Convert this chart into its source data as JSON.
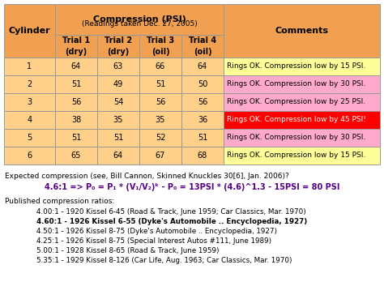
{
  "table_header_top": "Compression (PSI)",
  "table_header_sub": "(Readings taken Dec. 27, 2005)",
  "col_headers": [
    "Cylinder",
    "Trial 1\n(dry)",
    "Trial 2\n(dry)",
    "Trial 3\n(oil)",
    "Trial 4\n(oil)",
    "Comments"
  ],
  "rows": [
    [
      1,
      64,
      63,
      66,
      64,
      "Rings OK. Compression low by 15 PSI."
    ],
    [
      2,
      51,
      49,
      51,
      50,
      "Rings OK. Compression low by 30 PSI."
    ],
    [
      3,
      56,
      54,
      56,
      56,
      "Rings OK. Compression low by 25 PSI."
    ],
    [
      4,
      38,
      35,
      35,
      36,
      "Rings OK. Compression low by 45 PSI!"
    ],
    [
      5,
      51,
      51,
      52,
      51,
      "Rings OK. Compression low by 30 PSI."
    ],
    [
      6,
      65,
      64,
      67,
      68,
      "Rings OK. Compression low by 15 PSI."
    ]
  ],
  "comment_colors": [
    "#ffff99",
    "#ffaacc",
    "#ffaacc",
    "#ff0000",
    "#ffaacc",
    "#ffff99"
  ],
  "header_bg": "#f0a050",
  "data_bg": "#ffd08a",
  "border_color": "#999999",
  "formula_line1": "Expected compression (see, Bill Cannon, Skinned Knuckles 30[6], Jan. 2006)?",
  "formula_line2": "4.6:1 => P₀ = P₁ * (V₁/V₂)ᵏ - P₀ = 13PSI * (4.6)^1.3 - 15PSI = 80 PSI",
  "formula_color": "#550088",
  "published_title": "Published compression ratios:",
  "published_lines": [
    {
      "text": "4.00:1 - 1920 Kissel 6-45 (Road & Track, June 1959; Car Classics, Mar. 1970)",
      "bold": false
    },
    {
      "text": "4.60:1 - 1926 Kissel 6-55 (Dyke's Automobile .. Encyclopedia, 1927)",
      "bold": true
    },
    {
      "text": "4.50:1 - 1926 Kissel 8-75 (Dyke's Automobile .. Encyclopedia, 1927)",
      "bold": false
    },
    {
      "text": "4.25:1 - 1926 Kissel 8-75 (Special Interest Autos #111, June 1989)",
      "bold": false
    },
    {
      "text": "5.00:1 - 1928 Kissel 8-65 (Road & Track, June 1959)",
      "bold": false
    },
    {
      "text": "5.35:1 - 1929 Kissel 8-126 (Car Life, Aug. 1963; Car Classics, Mar. 1970)",
      "bold": false
    }
  ],
  "fig_width": 4.74,
  "fig_height": 3.69,
  "dpi": 100
}
